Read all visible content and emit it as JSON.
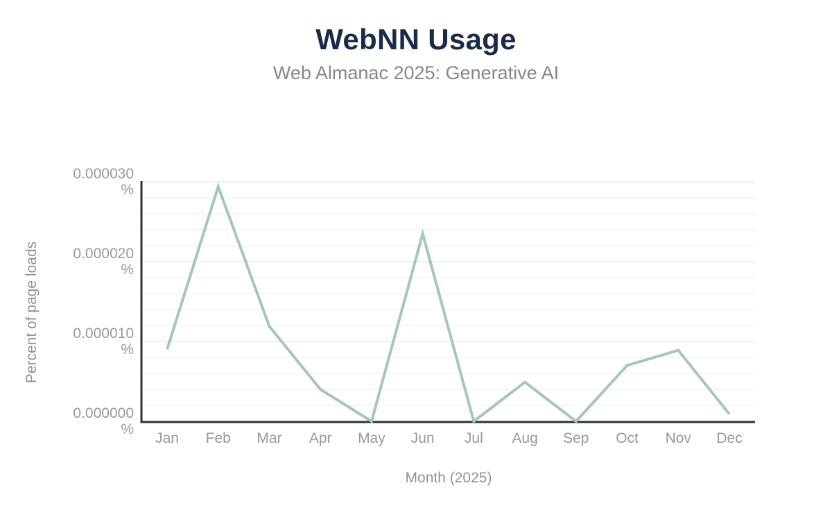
{
  "header": {
    "title": "WebNN Usage",
    "subtitle": "Web Almanac 2025: Generative AI"
  },
  "colors": {
    "background": "#ffffff",
    "title": "#1a2b49",
    "subtitle": "#85878a",
    "tick_label": "#97999c",
    "axis_title": "#8f9295",
    "axis_line": "#2f2f2f",
    "gridline_minor": "#f3f3f3",
    "gridline_major": "#ebebeb",
    "line": "#a7c7b6"
  },
  "chart_data": {
    "type": "line",
    "title": "WebNN Usage",
    "subtitle": "Web Almanac 2025: Generative AI",
    "xlabel": "Month (2025)",
    "ylabel": "Percent of page loads",
    "categories": [
      "Jan",
      "Feb",
      "Mar",
      "Apr",
      "May",
      "Jun",
      "Jul",
      "Aug",
      "Sep",
      "Oct",
      "Nov",
      "Dec"
    ],
    "values": [
      9e-06,
      2.94e-05,
      1.19e-05,
      4e-06,
      0,
      2.35e-05,
      0,
      4.9e-06,
      0,
      7e-06,
      8.9e-06,
      9e-07
    ],
    "unit": "%",
    "ylim": [
      0,
      3e-05
    ],
    "ytick_values": [
      0,
      1e-05,
      2e-05,
      3e-05
    ],
    "ytick_labels": [
      "0.000000",
      "0.000010",
      "0.000020",
      "0.000030"
    ],
    "ytick_unit": "%",
    "grid_step": 2e-06,
    "grid": "horizontal minor gridlines, major every 0.000010",
    "legend": "none",
    "line_color": "#a7c7b6"
  }
}
